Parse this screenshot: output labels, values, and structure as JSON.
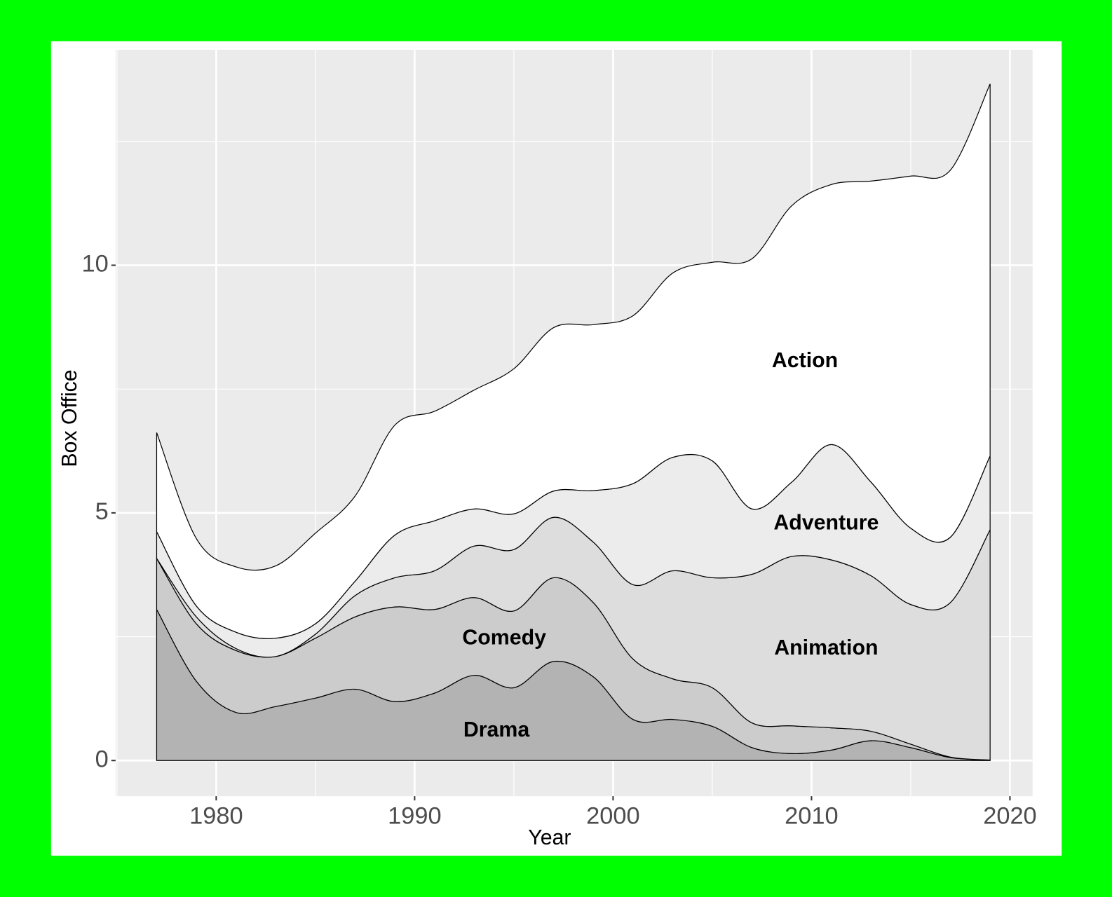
{
  "chart_data": {
    "type": "stacked_area",
    "x_label": "Year",
    "y_label": "Box Office",
    "x": [
      1977,
      1979,
      1981,
      1983,
      1985,
      1987,
      1989,
      1991,
      1993,
      1995,
      1997,
      1999,
      2001,
      2003,
      2005,
      2007,
      2009,
      2011,
      2013,
      2015,
      2017,
      2019
    ],
    "series": [
      {
        "name": "Drama",
        "color": "#b3b3b3",
        "values": [
          3.05,
          1.6,
          0.97,
          1.09,
          1.26,
          1.44,
          1.19,
          1.36,
          1.72,
          1.47,
          2.0,
          1.69,
          0.83,
          0.83,
          0.69,
          0.26,
          0.14,
          0.21,
          0.4,
          0.26,
          0.06,
          0.01
        ]
      },
      {
        "name": "Comedy",
        "color": "#cccccc",
        "values": [
          1.03,
          1.16,
          1.25,
          1.01,
          1.21,
          1.46,
          1.91,
          1.69,
          1.57,
          1.55,
          1.69,
          1.5,
          1.22,
          0.82,
          0.78,
          0.5,
          0.56,
          0.45,
          0.19,
          0.07,
          0.01,
          0
        ]
      },
      {
        "name": "Animation",
        "color": "#dddddd",
        "values": [
          0,
          0.14,
          0.04,
          0,
          0.08,
          0.43,
          0.59,
          0.78,
          1.04,
          1.24,
          1.22,
          1.22,
          1.5,
          2.18,
          2.22,
          3.0,
          3.42,
          3.39,
          3.14,
          2.82,
          3.12,
          4.65
        ]
      },
      {
        "name": "Adventure",
        "color": "#ececec",
        "values": [
          0.54,
          0.22,
          0.33,
          0.37,
          0.21,
          0.29,
          0.86,
          1.01,
          0.75,
          0.72,
          0.53,
          1.04,
          2.04,
          2.29,
          2.36,
          1.32,
          1.5,
          2.33,
          1.89,
          1.54,
          1.32,
          1.49
        ]
      },
      {
        "name": "Action",
        "color": "#ffffff",
        "values": [
          2.0,
          1.36,
          1.32,
          1.46,
          1.83,
          1.72,
          2.22,
          2.21,
          2.4,
          2.93,
          3.3,
          3.35,
          3.39,
          3.72,
          4.01,
          5.05,
          5.58,
          5.25,
          6.08,
          7.11,
          7.41,
          7.51
        ]
      }
    ],
    "xlim": [
      1974.93,
      2021.14
    ],
    "xticks": [
      1980,
      1990,
      2000,
      2010,
      2020
    ],
    "ylim": [
      -0.72,
      14.35
    ],
    "yticks": [
      0,
      5,
      10
    ],
    "grid": true
  }
}
